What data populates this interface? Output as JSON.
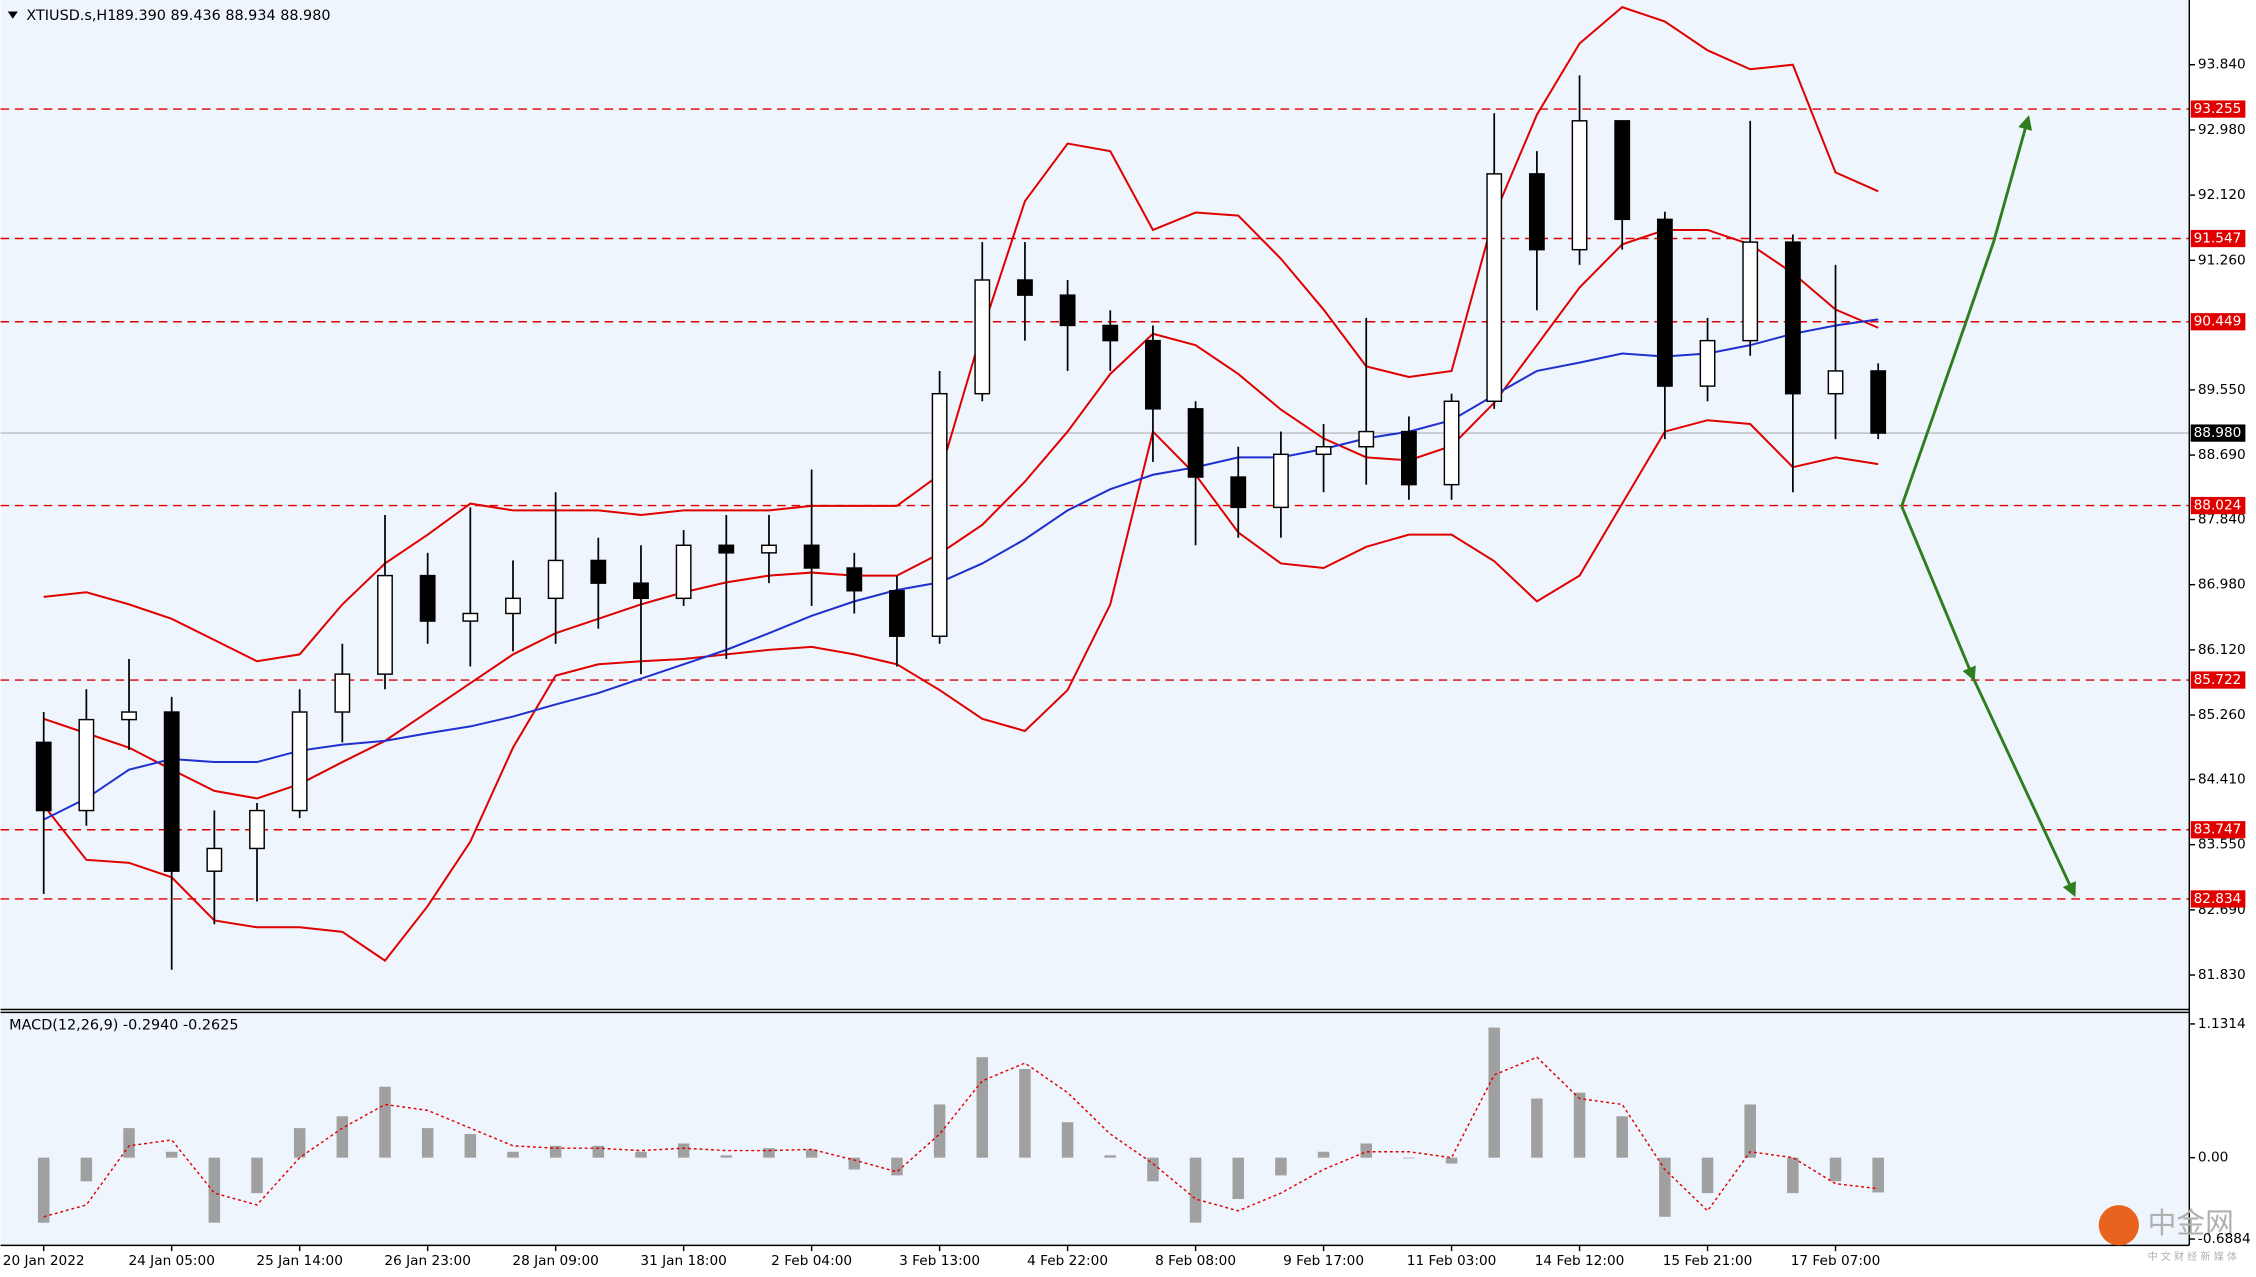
{
  "chart_data": [
    {
      "type": "candlestick",
      "title": "XTIUSD.s,H1",
      "subtitle": "89.390 89.436 88.934 88.980",
      "categories": [
        "20 Jan 2022",
        null,
        null,
        "24 Jan 05:00",
        null,
        null,
        "25 Jan 14:00",
        null,
        null,
        "26 Jan 23:00",
        null,
        null,
        "28 Jan 09:00",
        null,
        null,
        "31 Jan 18:00",
        null,
        null,
        "2 Feb 04:00",
        null,
        null,
        "3 Feb 13:00",
        null,
        null,
        "4 Feb 22:00",
        null,
        null,
        "8 Feb 08:00",
        null,
        null,
        "9 Feb 17:00",
        null,
        null,
        "11 Feb 03:00",
        null,
        null,
        "14 Feb 12:00",
        null,
        null,
        "15 Feb 21:00",
        null,
        null,
        "17 Feb 07:00",
        null
      ],
      "open": [
        84.9,
        84.0,
        85.2,
        85.3,
        83.2,
        83.5,
        84.0,
        85.3,
        85.8,
        87.1,
        86.5,
        86.6,
        86.8,
        87.3,
        87.0,
        86.8,
        87.5,
        87.4,
        87.5,
        87.2,
        86.9,
        86.3,
        89.5,
        91.0,
        90.8,
        90.4,
        90.2,
        89.3,
        88.4,
        88.0,
        88.7,
        88.8,
        89.0,
        88.3,
        89.4,
        92.4,
        91.4,
        93.1,
        91.8,
        89.6,
        90.2,
        91.5,
        89.5,
        89.8
      ],
      "high": [
        85.3,
        85.6,
        86.0,
        85.5,
        84.0,
        84.1,
        85.6,
        86.2,
        87.9,
        87.4,
        88.0,
        87.3,
        88.2,
        87.6,
        87.5,
        87.7,
        87.9,
        87.9,
        88.5,
        87.4,
        87.1,
        89.8,
        91.5,
        91.5,
        91.0,
        90.6,
        90.4,
        89.4,
        88.8,
        89.0,
        89.1,
        90.5,
        89.2,
        89.5,
        93.2,
        92.7,
        93.7,
        93.1,
        91.9,
        90.5,
        93.1,
        91.6,
        91.2,
        89.9
      ],
      "low": [
        82.9,
        83.8,
        84.8,
        81.9,
        82.5,
        82.8,
        83.9,
        84.9,
        85.6,
        86.2,
        85.9,
        86.1,
        86.2,
        86.4,
        85.8,
        86.7,
        86.0,
        87.0,
        86.7,
        86.6,
        85.9,
        86.2,
        89.4,
        90.2,
        89.8,
        89.8,
        88.6,
        87.5,
        87.6,
        87.6,
        88.2,
        88.3,
        88.1,
        88.1,
        89.3,
        90.6,
        91.2,
        91.4,
        88.9,
        89.4,
        90.0,
        88.2,
        88.9,
        88.9
      ],
      "close": [
        84.0,
        85.2,
        85.3,
        83.2,
        83.5,
        84.0,
        85.3,
        85.8,
        87.1,
        86.5,
        86.6,
        86.8,
        87.3,
        87.0,
        86.8,
        87.5,
        87.4,
        87.5,
        87.2,
        86.9,
        86.3,
        89.5,
        91.0,
        90.8,
        90.4,
        90.2,
        89.3,
        88.4,
        88.0,
        88.7,
        88.8,
        89.0,
        88.3,
        89.4,
        92.4,
        91.4,
        93.1,
        91.8,
        89.6,
        90.2,
        91.5,
        89.5,
        89.8,
        88.98
      ],
      "series": [
        {
          "color": "#e00000",
          "values": [
            86.82,
            86.88,
            86.72,
            86.53,
            86.25,
            85.97,
            86.06,
            86.72,
            87.26,
            87.64,
            88.05,
            87.96,
            87.96,
            87.96,
            87.9,
            87.96,
            87.96,
            87.96,
            88.02,
            88.02,
            88.02,
            88.43,
            90.33,
            92.04,
            92.8,
            92.7,
            91.66,
            91.89,
            91.85,
            91.28,
            90.61,
            89.86,
            89.72,
            89.8,
            91.85,
            93.18,
            94.12,
            94.6,
            94.41,
            94.03,
            93.78,
            93.84,
            92.42,
            92.17
          ]
        },
        {
          "color": "#e00000",
          "values": [
            85.21,
            85.02,
            84.83,
            84.54,
            84.26,
            84.16,
            84.35,
            84.64,
            84.92,
            85.3,
            85.68,
            86.06,
            86.34,
            86.53,
            86.72,
            86.88,
            87.01,
            87.1,
            87.14,
            87.1,
            87.1,
            87.39,
            87.77,
            88.34,
            89.0,
            89.76,
            90.29,
            90.14,
            89.76,
            89.29,
            88.91,
            88.66,
            88.62,
            88.81,
            89.38,
            90.14,
            90.9,
            91.47,
            91.66,
            91.66,
            91.47,
            91.09,
            90.61,
            90.37
          ]
        },
        {
          "color": "#e00000",
          "values": [
            84.07,
            83.35,
            83.31,
            83.12,
            82.55,
            82.46,
            82.46,
            82.4,
            82.02,
            82.74,
            83.59,
            84.83,
            85.78,
            85.93,
            85.97,
            86.0,
            86.06,
            86.12,
            86.16,
            86.06,
            85.93,
            85.59,
            85.21,
            85.05,
            85.59,
            86.72,
            89.0,
            88.43,
            87.67,
            87.26,
            87.2,
            87.48,
            87.64,
            87.64,
            87.29,
            86.76,
            87.1,
            88.05,
            89.0,
            89.15,
            89.1,
            88.53,
            88.66,
            88.57
          ]
        },
        {
          "color": "#2030d0",
          "values": [
            83.88,
            84.16,
            84.54,
            84.68,
            84.64,
            84.64,
            84.79,
            84.87,
            84.92,
            85.02,
            85.11,
            85.24,
            85.4,
            85.55,
            85.74,
            85.93,
            86.12,
            86.34,
            86.57,
            86.76,
            86.91,
            87.01,
            87.26,
            87.58,
            87.96,
            88.24,
            88.43,
            88.53,
            88.66,
            88.66,
            88.77,
            88.91,
            89.0,
            89.15,
            89.48,
            89.8,
            89.91,
            90.03,
            89.99,
            90.03,
            90.14,
            90.29,
            90.4,
            90.48
          ]
        }
      ],
      "levels": [
        93.255,
        91.547,
        90.449,
        88.024,
        85.722,
        83.747,
        82.834
      ],
      "level_color": "#e00000",
      "current_price": {
        "value": 88.98,
        "label": "88.980"
      },
      "ylim": [
        81.375,
        94.694
      ],
      "yticks": [
        {
          "value": 93.84,
          "label": "93.840"
        },
        {
          "value": 92.98,
          "label": "92.980"
        },
        {
          "value": 92.12,
          "label": "92.120"
        },
        {
          "value": 91.26,
          "label": "91.260"
        },
        {
          "value": 89.55,
          "label": "89.550"
        },
        {
          "value": 88.69,
          "label": "88.690"
        },
        {
          "value": 87.84,
          "label": "87.840"
        },
        {
          "value": 86.98,
          "label": "86.980"
        },
        {
          "value": 86.12,
          "label": "86.120"
        },
        {
          "value": 85.26,
          "label": "85.260"
        },
        {
          "value": 84.41,
          "label": "84.410"
        },
        {
          "value": 83.55,
          "label": "83.550"
        },
        {
          "value": 82.69,
          "label": "82.690"
        },
        {
          "value": 81.83,
          "label": "81.830"
        }
      ]
    },
    {
      "type": "bar",
      "title": "MACD(12,26,9) -0.2940 -0.2625",
      "color": "#a0a0a0",
      "values": [
        -0.55,
        -0.2,
        0.25,
        0.05,
        -0.55,
        -0.3,
        0.25,
        0.35,
        0.6,
        0.25,
        0.2,
        0.05,
        0.1,
        0.1,
        0.05,
        0.12,
        0.02,
        0.08,
        0.07,
        -0.1,
        -0.15,
        0.45,
        0.85,
        0.75,
        0.3,
        0.02,
        -0.2,
        -0.55,
        -0.35,
        -0.15,
        0.05,
        0.12,
        0.0,
        -0.05,
        1.1,
        0.5,
        0.55,
        0.35,
        -0.5,
        -0.3,
        0.45,
        -0.3,
        -0.2,
        -0.294
      ],
      "signal": {
        "color": "#e00000",
        "values": [
          -0.5,
          -0.4,
          0.1,
          0.15,
          -0.3,
          -0.4,
          0.0,
          0.25,
          0.45,
          0.4,
          0.25,
          0.1,
          0.08,
          0.08,
          0.06,
          0.08,
          0.06,
          0.06,
          0.07,
          -0.02,
          -0.12,
          0.2,
          0.65,
          0.8,
          0.55,
          0.2,
          -0.05,
          -0.35,
          -0.45,
          -0.3,
          -0.1,
          0.05,
          0.05,
          0.0,
          0.7,
          0.85,
          0.5,
          0.45,
          -0.1,
          -0.45,
          0.05,
          0.0,
          -0.22,
          -0.2625
        ]
      },
      "ylim": [
        -0.742,
        1.229
      ],
      "yticks": [
        1.1314,
        {
          "value": 0,
          "label": "0.00"
        },
        -0.6884
      ]
    }
  ],
  "watermark": {
    "logo": "中金网",
    "tagline": "中 文 财 经 新 媒 体"
  }
}
